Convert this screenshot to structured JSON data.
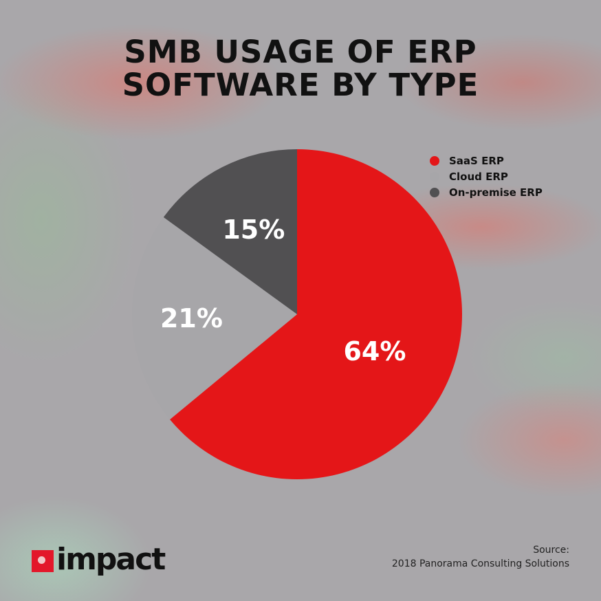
{
  "chart_data": {
    "type": "pie",
    "title": "SMB USAGE OF ERP SOFTWARE BY TYPE",
    "categories": [
      "SaaS ERP",
      "Cloud ERP",
      "On-premise ERP"
    ],
    "values": [
      64,
      21,
      15
    ],
    "labels": [
      "64%",
      "21%",
      "15%"
    ],
    "colors": [
      "#e41618",
      "#a7a6a9",
      "#515052"
    ],
    "start": "top, clockwise",
    "legend_position": "top-right"
  },
  "title_lines": [
    "SMB USAGE OF ERP",
    "SOFTWARE BY TYPE"
  ],
  "logo": {
    "text": "impact"
  },
  "source": {
    "label": "Source:",
    "text": "2018 Panorama Consulting Solutions"
  }
}
